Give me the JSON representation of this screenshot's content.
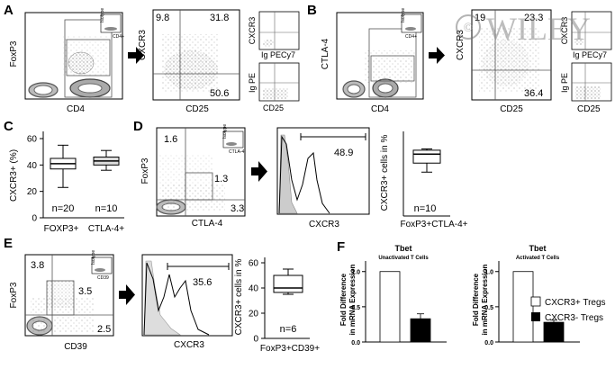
{
  "panels": {
    "A": {
      "letter": "A",
      "plot1": {
        "ylabel": "FoxP3",
        "xlabel": "CD4",
        "inset_top": "Isotype",
        "inset_bottom": "CD4+"
      },
      "plot2": {
        "ylabel": "CXCR3",
        "xlabel": "CD25",
        "q_ul": "9.8",
        "q_ur": "31.8",
        "q_lr": "50.6"
      },
      "iso1": {
        "ylabel": "CXCR3",
        "xlabel": "Ig PECy7"
      },
      "iso2": {
        "ylabel": "Ig PE",
        "xlabel": "CD25"
      }
    },
    "B": {
      "letter": "B",
      "plot1": {
        "ylabel": "CTLA-4",
        "xlabel": "CD4",
        "inset_top": "Isotype",
        "inset_bottom": "CD4+"
      },
      "plot2": {
        "ylabel": "CXCR3",
        "xlabel": "CD25",
        "q_ul": "19",
        "q_ur": "23.3",
        "q_lr": "36.4"
      },
      "iso1": {
        "ylabel": "CXCR3",
        "xlabel": "Ig PECy7"
      },
      "iso2": {
        "ylabel": "Ig PE",
        "xlabel": "CD25"
      },
      "watermark": "WILEY"
    },
    "C": {
      "letter": "C",
      "chart": {
        "ylabel": "CXCR3+ (%)",
        "yticks": [
          "0",
          "20",
          "40",
          "60"
        ],
        "groups": [
          "FOXP3+",
          "CTLA-4+"
        ],
        "n_labels": [
          "n=20",
          "n=10"
        ]
      }
    },
    "D": {
      "letter": "D",
      "dot": {
        "ylabel": "FoxP3",
        "xlabel": "CTLA-4",
        "q_ul": "1.6",
        "q_mid": "1.3",
        "q_lr": "3.3",
        "inset_top": "Isotype",
        "inset_bottom": "CTLA-4"
      },
      "hist": {
        "xlabel": "CXCR3",
        "gate": "48.9"
      },
      "box": {
        "ylabel": "CXCR3+ cells in %",
        "xlabel": "FoxP3+CTLA-4+",
        "n_label": "n=10"
      }
    },
    "E": {
      "letter": "E",
      "dot": {
        "ylabel": "FoxP3",
        "xlabel": "CD39",
        "q_ul": "3.8",
        "q_mid": "3.5",
        "q_lr": "2.5",
        "inset_top": "Isotype",
        "inset_bottom": "CD39"
      },
      "hist": {
        "xlabel": "CXCR3",
        "gate": "35.6"
      },
      "box": {
        "ylabel": "CXCR3+ cells in %",
        "yticks": [
          "0",
          "20",
          "40",
          "60"
        ],
        "xlabel": "FoxP3+CD39+",
        "n_label": "n=6"
      }
    },
    "F": {
      "letter": "F",
      "ylabel_line1": "Fold Difference",
      "ylabel_line2": "in mRNA Expression",
      "yticks": [
        "0.0",
        "0.5",
        "1.0"
      ],
      "left": {
        "title": "Tbet",
        "subtitle": "Unactivated T Cells"
      },
      "right": {
        "title": "Tbet",
        "subtitle": "Activated T Cells"
      },
      "legend": {
        "pos": "CXCR3+ Tregs",
        "neg": "CXCR3- Tregs"
      }
    }
  },
  "chart_data": [
    {
      "type": "bar",
      "panel": "F-left",
      "title": "Tbet",
      "subtitle": "Unactivated T Cells",
      "categories": [
        "CXCR3+ Tregs",
        "CXCR3- Tregs"
      ],
      "values": [
        1.0,
        0.33
      ],
      "errors": [
        0,
        0.07
      ],
      "ylim": [
        0,
        1.15
      ],
      "colors": [
        "#ffffff",
        "#000000"
      ]
    },
    {
      "type": "bar",
      "panel": "F-right",
      "title": "Tbet",
      "subtitle": "Activated T Cells",
      "categories": [
        "CXCR3+ Tregs",
        "CXCR3- Tregs"
      ],
      "values": [
        1.0,
        0.28
      ],
      "errors": [
        0,
        0.03
      ],
      "ylim": [
        0,
        1.15
      ],
      "colors": [
        "#ffffff",
        "#000000"
      ]
    },
    {
      "type": "box",
      "panel": "C",
      "categories": [
        "FOXP3+",
        "CTLA-4+"
      ],
      "series": [
        {
          "min": 23,
          "q1": 37,
          "median": 41,
          "q3": 45,
          "max": 55
        },
        {
          "min": 36,
          "q1": 40,
          "median": 43,
          "q3": 46,
          "max": 51
        }
      ],
      "ylim": [
        0,
        60
      ]
    }
  ]
}
